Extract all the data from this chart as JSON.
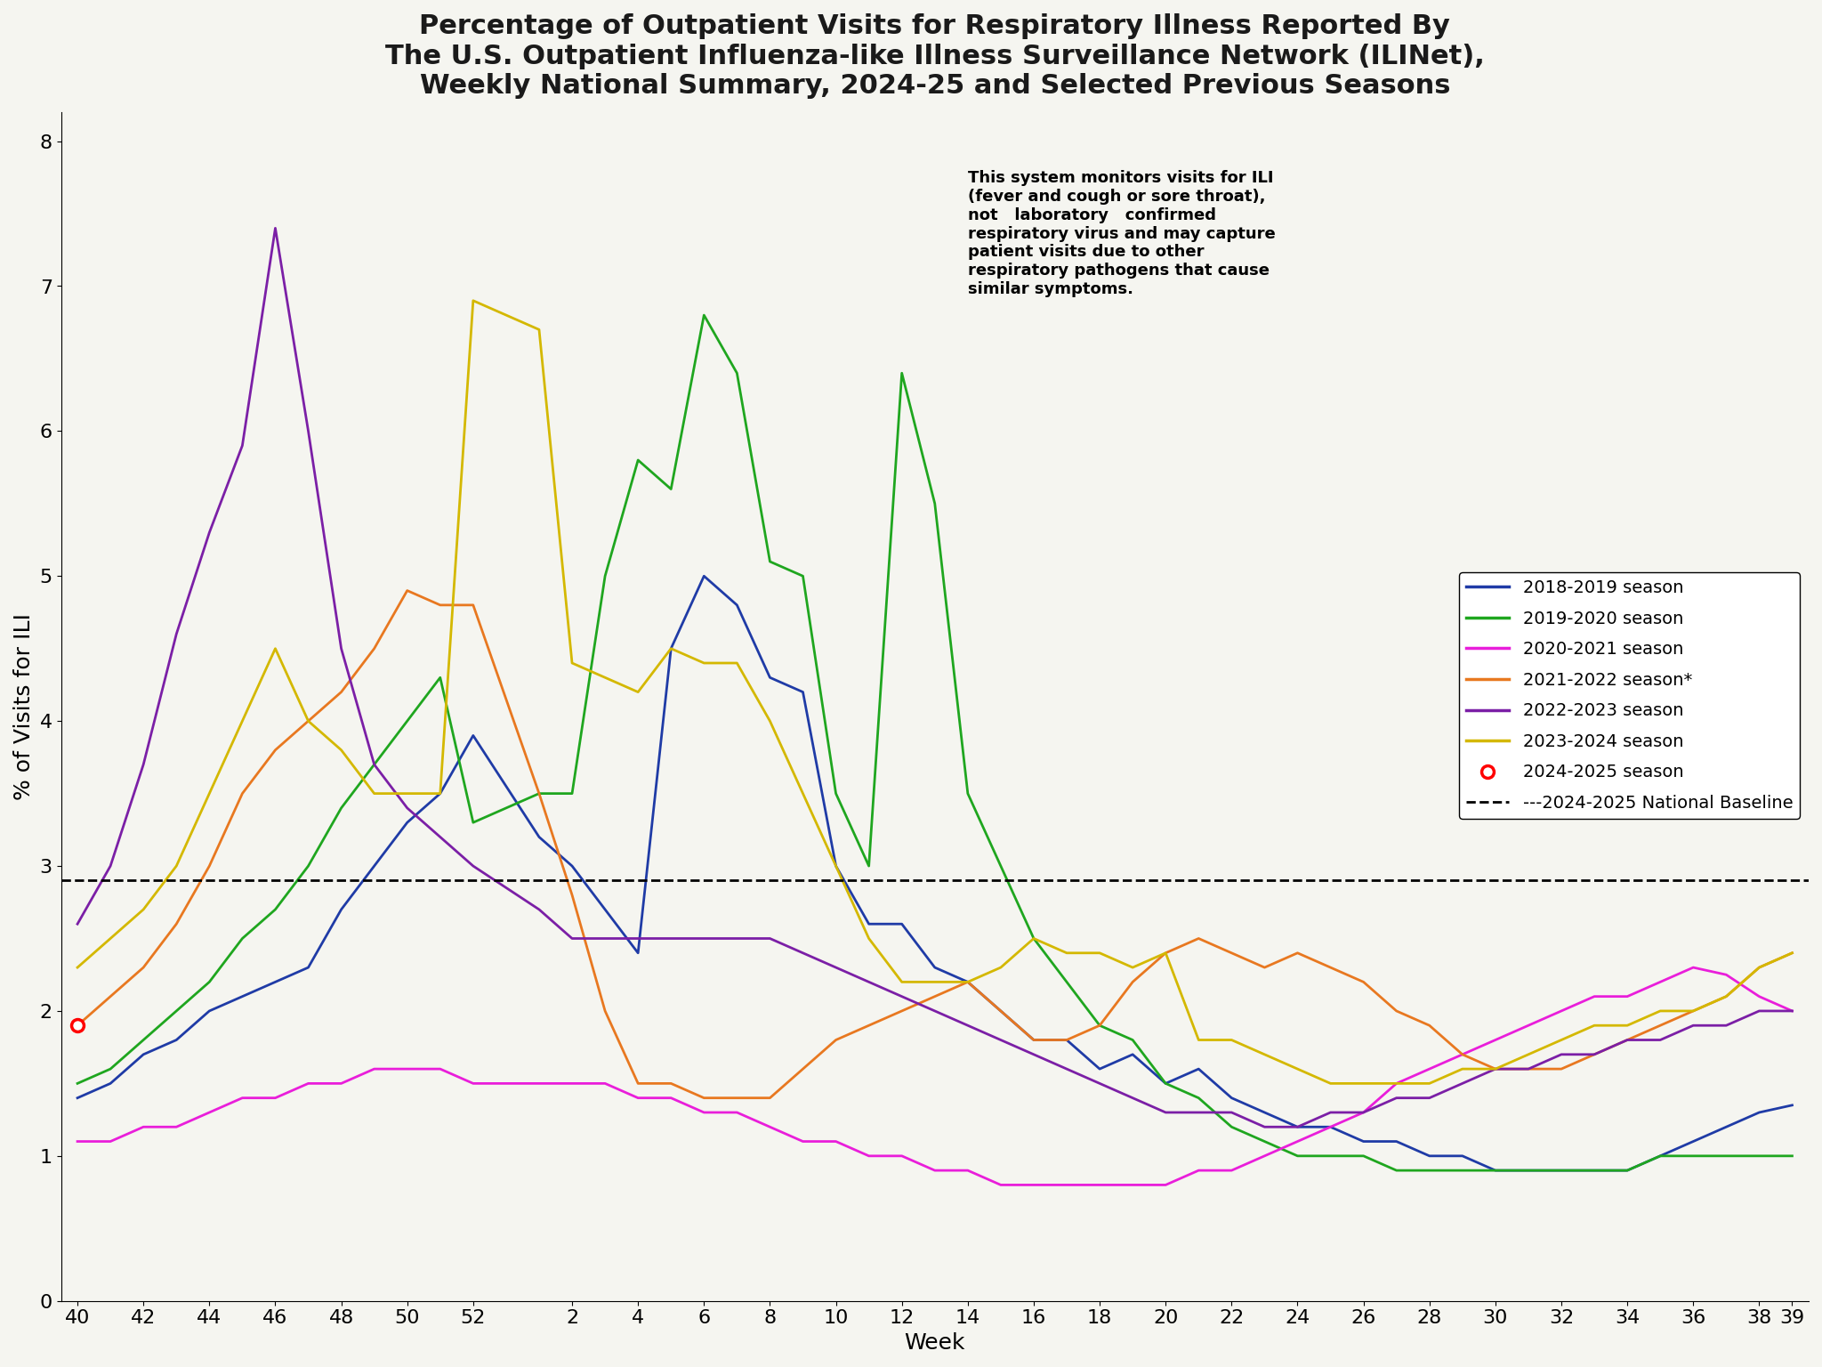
{
  "title": "Percentage of Outpatient Visits for Respiratory Illness Reported By\nThe U.S. Outpatient Influenza-like Illness Surveillance Network (ILINet),\nWeekly National Summary, 2024-25 and Selected Previous Seasons",
  "xlabel": "Week",
  "ylabel": "% of Visits for ILI",
  "background_color": "#f5f5f0",
  "baseline_value": 2.9,
  "baseline_label": "---2024-2025 National Baseline",
  "x_ticks": [
    40,
    42,
    44,
    46,
    48,
    50,
    52,
    2,
    4,
    6,
    8,
    10,
    12,
    14,
    16,
    18,
    20,
    22,
    24,
    26,
    28,
    30,
    32,
    34,
    36,
    38,
    39
  ],
  "x_tick_labels": [
    "40",
    "42",
    "44",
    "46",
    "48",
    "50",
    "52",
    "2",
    "4",
    "6",
    "8",
    "10",
    "12",
    "14",
    "16",
    "18",
    "20",
    "22",
    "24",
    "26",
    "28",
    "30",
    "32",
    "34",
    "36",
    "38",
    "39"
  ],
  "ylim": [
    0,
    8.2
  ],
  "annotation_text": "This system monitors visits for ILI\n(fever and cough or sore throat),\nnot   laboratory   confirmed\nrespiratory virus and may capture\npatient visits due to other\nrespiratory pathogens that cause\nsimilar symptoms.",
  "seasons": [
    {
      "label": "2018-2019 season",
      "color": "#1f3ba6",
      "linewidth": 2.0,
      "x": [
        40,
        41,
        42,
        43,
        44,
        45,
        46,
        47,
        48,
        49,
        50,
        51,
        52,
        1,
        2,
        3,
        4,
        5,
        6,
        7,
        8,
        9,
        10,
        11,
        12,
        13,
        14,
        15,
        16,
        17,
        18,
        19,
        20,
        21,
        22,
        23,
        24,
        25,
        26,
        27,
        28,
        29,
        30,
        31,
        32,
        33,
        34,
        35,
        36,
        37,
        38,
        39
      ],
      "y": [
        1.4,
        1.5,
        1.7,
        1.8,
        2.0,
        2.1,
        2.2,
        2.3,
        2.7,
        3.0,
        3.3,
        3.5,
        3.9,
        3.2,
        3.0,
        2.7,
        2.4,
        4.5,
        5.0,
        4.8,
        4.3,
        4.2,
        3.0,
        2.6,
        2.6,
        2.3,
        2.2,
        2.0,
        1.8,
        1.8,
        1.6,
        1.7,
        1.5,
        1.6,
        1.4,
        1.3,
        1.2,
        1.2,
        1.1,
        1.1,
        1.0,
        1.0,
        0.9,
        0.9,
        0.9,
        0.9,
        0.9,
        1.0,
        1.1,
        1.2,
        1.3,
        1.35
      ]
    },
    {
      "label": "2019-2020 season",
      "color": "#1fa61f",
      "linewidth": 2.0,
      "x": [
        40,
        41,
        42,
        43,
        44,
        45,
        46,
        47,
        48,
        49,
        50,
        51,
        52,
        1,
        2,
        3,
        4,
        5,
        6,
        7,
        8,
        9,
        10,
        11,
        12,
        13,
        14,
        15,
        16,
        17,
        18,
        19,
        20,
        21,
        22,
        23,
        24,
        25,
        26,
        27,
        28,
        29,
        30,
        31,
        32,
        33,
        34,
        35,
        36,
        37,
        38,
        39
      ],
      "y": [
        1.5,
        1.6,
        1.8,
        2.0,
        2.2,
        2.5,
        2.7,
        3.0,
        3.4,
        3.7,
        4.0,
        4.3,
        3.3,
        3.5,
        3.5,
        5.0,
        5.8,
        5.6,
        6.8,
        6.4,
        5.1,
        5.0,
        3.5,
        3.0,
        6.4,
        5.5,
        3.5,
        3.0,
        2.5,
        2.2,
        1.9,
        1.8,
        1.5,
        1.4,
        1.2,
        1.1,
        1.0,
        1.0,
        1.0,
        0.9,
        0.9,
        0.9,
        0.9,
        0.9,
        0.9,
        0.9,
        0.9,
        1.0,
        1.0,
        1.0,
        1.0,
        1.0
      ]
    },
    {
      "label": "2020-2021 season",
      "color": "#e91eda",
      "linewidth": 2.0,
      "x": [
        40,
        41,
        42,
        43,
        44,
        45,
        46,
        47,
        48,
        49,
        50,
        51,
        52,
        1,
        2,
        3,
        4,
        5,
        6,
        7,
        8,
        9,
        10,
        11,
        12,
        13,
        14,
        15,
        16,
        17,
        18,
        19,
        20,
        21,
        22,
        23,
        24,
        25,
        26,
        27,
        28,
        29,
        30,
        31,
        32,
        33,
        34,
        35,
        36,
        37,
        38,
        39
      ],
      "y": [
        1.1,
        1.1,
        1.2,
        1.2,
        1.3,
        1.4,
        1.4,
        1.5,
        1.5,
        1.6,
        1.6,
        1.6,
        1.5,
        1.5,
        1.5,
        1.5,
        1.4,
        1.4,
        1.3,
        1.3,
        1.2,
        1.1,
        1.1,
        1.0,
        1.0,
        0.9,
        0.9,
        0.8,
        0.8,
        0.8,
        0.8,
        0.8,
        0.8,
        0.9,
        0.9,
        1.0,
        1.1,
        1.2,
        1.3,
        1.5,
        1.6,
        1.7,
        1.8,
        1.9,
        2.0,
        2.1,
        2.1,
        2.2,
        2.3,
        2.25,
        2.1,
        2.0
      ]
    },
    {
      "label": "2021-2022 season*",
      "color": "#e87820",
      "linewidth": 2.0,
      "x": [
        40,
        41,
        42,
        43,
        44,
        45,
        46,
        47,
        48,
        49,
        50,
        51,
        52,
        1,
        2,
        3,
        4,
        5,
        6,
        7,
        8,
        9,
        10,
        11,
        12,
        13,
        14,
        15,
        16,
        17,
        18,
        19,
        20,
        21,
        22,
        23,
        24,
        25,
        26,
        27,
        28,
        29,
        30,
        31,
        32,
        33,
        34,
        35,
        36,
        37,
        38,
        39
      ],
      "y": [
        1.9,
        2.1,
        2.3,
        2.6,
        3.0,
        3.5,
        3.8,
        4.0,
        4.2,
        4.5,
        4.9,
        4.8,
        4.8,
        3.5,
        2.8,
        2.0,
        1.5,
        1.5,
        1.4,
        1.4,
        1.4,
        1.6,
        1.8,
        1.9,
        2.0,
        2.1,
        2.2,
        2.0,
        1.8,
        1.8,
        1.9,
        2.2,
        2.4,
        2.5,
        2.4,
        2.3,
        2.4,
        2.3,
        2.2,
        2.0,
        1.9,
        1.7,
        1.6,
        1.6,
        1.6,
        1.7,
        1.8,
        1.9,
        2.0,
        2.1,
        2.3,
        2.4
      ]
    },
    {
      "label": "2022-2023 season",
      "color": "#7b1fa6",
      "linewidth": 2.0,
      "x": [
        40,
        41,
        42,
        43,
        44,
        45,
        46,
        47,
        48,
        49,
        50,
        51,
        52,
        1,
        2,
        3,
        4,
        5,
        6,
        7,
        8,
        9,
        10,
        11,
        12,
        13,
        14,
        15,
        16,
        17,
        18,
        19,
        20,
        21,
        22,
        23,
        24,
        25,
        26,
        27,
        28,
        29,
        30,
        31,
        32,
        33,
        34,
        35,
        36,
        37,
        38,
        39
      ],
      "y": [
        2.6,
        3.0,
        3.7,
        4.6,
        5.3,
        5.9,
        7.4,
        6.0,
        4.5,
        3.7,
        3.4,
        3.2,
        3.0,
        2.7,
        2.5,
        2.5,
        2.5,
        2.5,
        2.5,
        2.5,
        2.5,
        2.4,
        2.3,
        2.2,
        2.1,
        2.0,
        1.9,
        1.8,
        1.7,
        1.6,
        1.5,
        1.4,
        1.3,
        1.3,
        1.3,
        1.2,
        1.2,
        1.3,
        1.3,
        1.4,
        1.4,
        1.5,
        1.6,
        1.6,
        1.7,
        1.7,
        1.8,
        1.8,
        1.9,
        1.9,
        2.0,
        2.0
      ]
    },
    {
      "label": "2023-2024 season",
      "color": "#d4b800",
      "linewidth": 2.0,
      "x": [
        40,
        41,
        42,
        43,
        44,
        45,
        46,
        47,
        48,
        49,
        50,
        51,
        52,
        1,
        2,
        3,
        4,
        5,
        6,
        7,
        8,
        9,
        10,
        11,
        12,
        13,
        14,
        15,
        16,
        17,
        18,
        19,
        20,
        21,
        22,
        23,
        24,
        25,
        26,
        27,
        28,
        29,
        30,
        31,
        32,
        33,
        34,
        35,
        36,
        37,
        38,
        39
      ],
      "y": [
        2.3,
        2.5,
        2.7,
        3.0,
        3.5,
        4.0,
        4.5,
        4.0,
        3.8,
        3.5,
        3.5,
        3.5,
        6.9,
        6.7,
        4.4,
        4.3,
        4.2,
        4.5,
        4.4,
        4.4,
        4.0,
        3.5,
        3.0,
        2.5,
        2.2,
        2.2,
        2.2,
        2.3,
        2.5,
        2.4,
        2.4,
        2.3,
        2.4,
        1.8,
        1.8,
        1.7,
        1.6,
        1.5,
        1.5,
        1.5,
        1.5,
        1.6,
        1.6,
        1.7,
        1.8,
        1.9,
        1.9,
        2.0,
        2.0,
        2.1,
        2.3,
        2.4
      ]
    },
    {
      "label": "2024-2025 season",
      "color": "#ff0000",
      "linewidth": 0,
      "marker": "o",
      "marker_size": 10,
      "x": [
        40
      ],
      "y": [
        1.9
      ]
    }
  ]
}
